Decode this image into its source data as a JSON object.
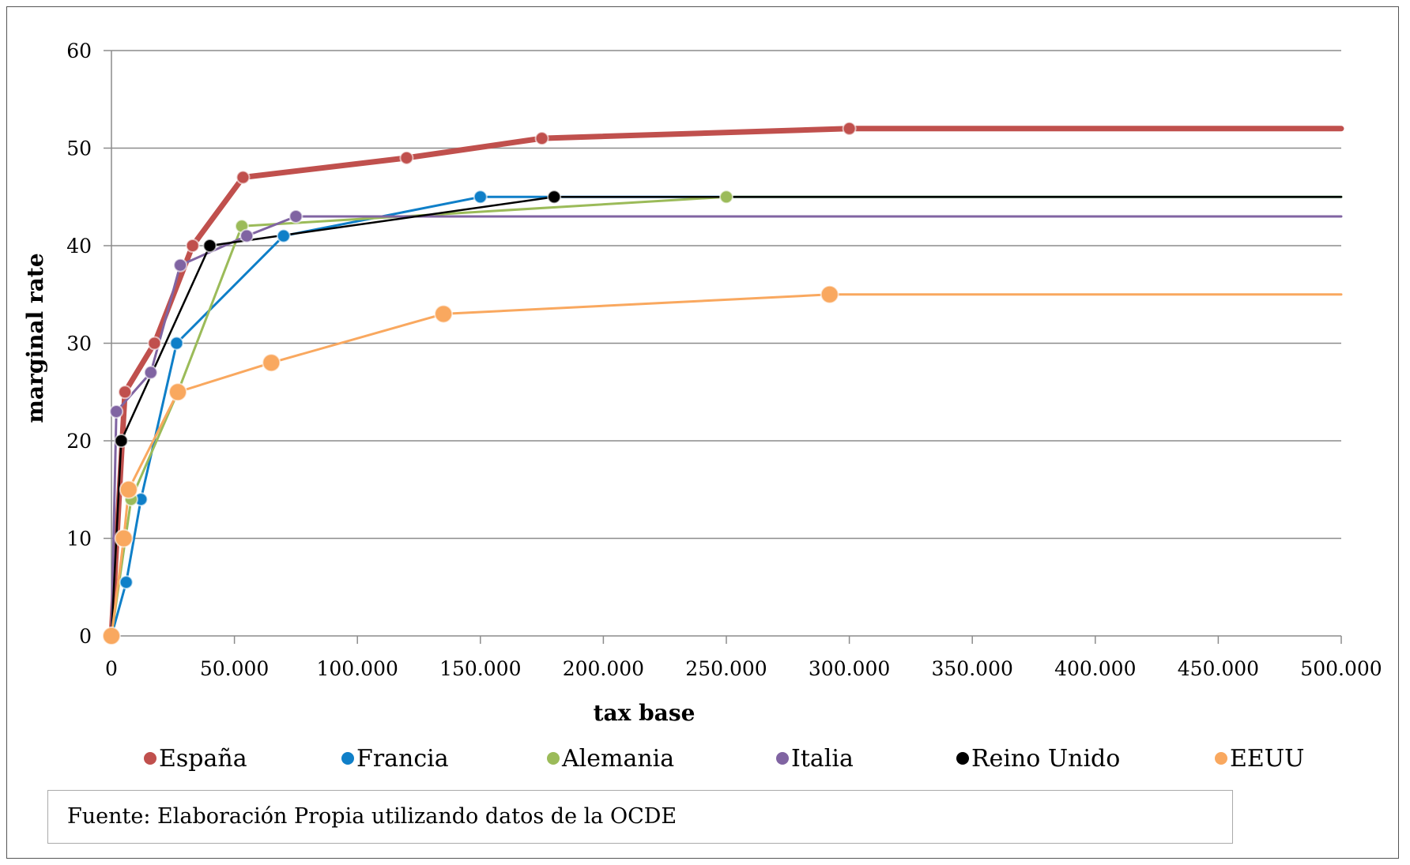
{
  "source_note": "Fuente: Elaboración Propia utilizando datos de la OCDE",
  "chart_data": {
    "type": "line",
    "title": "",
    "xlabel": "tax base",
    "ylabel": "marginal rate",
    "xlim": [
      0,
      500000
    ],
    "ylim": [
      0,
      60
    ],
    "xticks": [
      0,
      50000,
      100000,
      150000,
      200000,
      250000,
      300000,
      350000,
      400000,
      450000,
      500000
    ],
    "xtick_labels": [
      "0",
      "50.000",
      "100.000",
      "150.000",
      "200.000",
      "250.000",
      "300.000",
      "350.000",
      "400.000",
      "450.000",
      "500.000"
    ],
    "yticks": [
      0,
      10,
      20,
      30,
      40,
      50,
      60
    ],
    "ytick_labels": [
      "0",
      "10",
      "20",
      "30",
      "40",
      "50",
      "60"
    ],
    "grid": true,
    "legend_position": "bottom",
    "series": [
      {
        "name": "España",
        "color": "#c0504d",
        "stroke_width": 7,
        "points": [
          [
            0,
            0
          ],
          [
            5500,
            25
          ],
          [
            17500,
            30
          ],
          [
            33000,
            40
          ],
          [
            53500,
            47
          ],
          [
            120000,
            49
          ],
          [
            175000,
            51
          ],
          [
            300000,
            52
          ],
          [
            500000,
            52
          ]
        ],
        "markers": [
          true,
          true,
          true,
          true,
          true,
          true,
          true,
          true,
          false
        ]
      },
      {
        "name": "Francia",
        "color": "#0f7fc8",
        "stroke_width": 3,
        "points": [
          [
            0,
            0
          ],
          [
            6000,
            5.5
          ],
          [
            12000,
            14
          ],
          [
            26500,
            30
          ],
          [
            70000,
            41
          ],
          [
            150000,
            45
          ],
          [
            500000,
            45
          ]
        ],
        "markers": [
          true,
          true,
          true,
          true,
          true,
          true,
          false
        ]
      },
      {
        "name": "Alemania",
        "color": "#9bbb59",
        "stroke_width": 3,
        "points": [
          [
            0,
            0
          ],
          [
            8000,
            14
          ],
          [
            27000,
            25
          ],
          [
            53000,
            42
          ],
          [
            250000,
            45
          ],
          [
            500000,
            45
          ]
        ],
        "markers": [
          true,
          true,
          true,
          true,
          true,
          false
        ]
      },
      {
        "name": "Italia",
        "color": "#8064a2",
        "stroke_width": 3,
        "points": [
          [
            0,
            0
          ],
          [
            2000,
            23
          ],
          [
            16000,
            27
          ],
          [
            28000,
            38
          ],
          [
            55000,
            41
          ],
          [
            75000,
            43
          ],
          [
            500000,
            43
          ]
        ],
        "markers": [
          true,
          true,
          true,
          true,
          true,
          true,
          false
        ]
      },
      {
        "name": "Reino Unido",
        "color": "#000000",
        "stroke_width": 2.5,
        "points": [
          [
            0,
            0
          ],
          [
            4000,
            20
          ],
          [
            40000,
            40
          ],
          [
            180000,
            45
          ],
          [
            500000,
            45
          ]
        ],
        "markers": [
          true,
          true,
          true,
          true,
          false
        ]
      },
      {
        "name": "EEUU",
        "color": "#f9a85f",
        "stroke_width": 3,
        "points": [
          [
            0,
            0
          ],
          [
            5000,
            10
          ],
          [
            7000,
            15
          ],
          [
            27000,
            25
          ],
          [
            65000,
            28
          ],
          [
            135000,
            33
          ],
          [
            292000,
            35
          ],
          [
            500000,
            35
          ]
        ],
        "markers": [
          true,
          true,
          true,
          true,
          true,
          true,
          true,
          false
        ]
      }
    ]
  }
}
